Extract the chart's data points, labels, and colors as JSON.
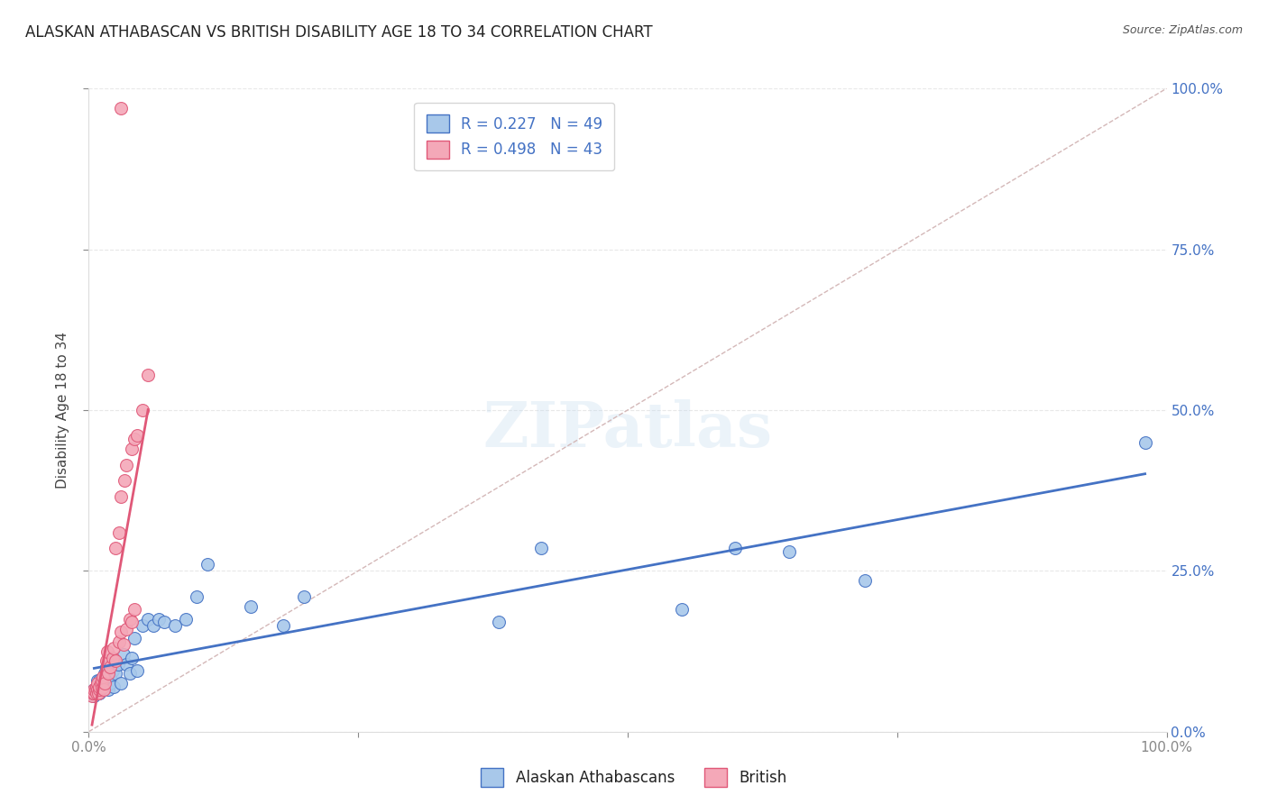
{
  "title": "ALASKAN ATHABASCAN VS BRITISH DISABILITY AGE 18 TO 34 CORRELATION CHART",
  "source": "Source: ZipAtlas.com",
  "ylabel": "Disability Age 18 to 34",
  "legend_label_alaskan": "Alaskan Athabascans",
  "legend_label_british": "British",
  "color_alaskan": "#a8c8ea",
  "color_british": "#f4a8b8",
  "color_line_alaskan": "#4472c4",
  "color_line_british": "#e05878",
  "color_diagonal": "#d4b8b8",
  "background_color": "#ffffff",
  "grid_color": "#e8e8e8",
  "r_alaskan": 0.227,
  "n_alaskan": 49,
  "r_british": 0.498,
  "n_british": 43,
  "xlim": [
    0.0,
    1.0
  ],
  "ylim": [
    0.0,
    1.0
  ],
  "yticks": [
    0.0,
    0.25,
    0.5,
    0.75,
    1.0
  ],
  "ytick_labels_right": [
    "0.0%",
    "25.0%",
    "50.0%",
    "75.0%",
    "100.0%"
  ],
  "xticks": [
    0.0,
    0.25,
    0.5,
    0.75,
    1.0
  ],
  "xtick_labels": [
    "0.0%",
    "",
    "",
    "",
    "100.0%"
  ],
  "alaskan_x": [
    0.005,
    0.005,
    0.007,
    0.008,
    0.008,
    0.009,
    0.01,
    0.01,
    0.01,
    0.012,
    0.012,
    0.013,
    0.015,
    0.015,
    0.016,
    0.017,
    0.018,
    0.02,
    0.02,
    0.022,
    0.023,
    0.025,
    0.027,
    0.03,
    0.032,
    0.035,
    0.038,
    0.04,
    0.042,
    0.045,
    0.05,
    0.055,
    0.06,
    0.065,
    0.07,
    0.08,
    0.09,
    0.1,
    0.11,
    0.15,
    0.18,
    0.2,
    0.38,
    0.42,
    0.55,
    0.6,
    0.65,
    0.72,
    0.98
  ],
  "alaskan_y": [
    0.055,
    0.065,
    0.07,
    0.075,
    0.08,
    0.065,
    0.06,
    0.07,
    0.08,
    0.068,
    0.075,
    0.08,
    0.09,
    0.07,
    0.1,
    0.085,
    0.065,
    0.075,
    0.085,
    0.095,
    0.07,
    0.09,
    0.105,
    0.075,
    0.12,
    0.105,
    0.09,
    0.115,
    0.145,
    0.095,
    0.165,
    0.175,
    0.165,
    0.175,
    0.17,
    0.165,
    0.175,
    0.21,
    0.26,
    0.195,
    0.165,
    0.21,
    0.17,
    0.285,
    0.19,
    0.285,
    0.28,
    0.235,
    0.45
  ],
  "british_x": [
    0.003,
    0.004,
    0.005,
    0.005,
    0.006,
    0.007,
    0.007,
    0.008,
    0.008,
    0.009,
    0.01,
    0.01,
    0.011,
    0.012,
    0.012,
    0.013,
    0.014,
    0.015,
    0.016,
    0.017,
    0.018,
    0.02,
    0.022,
    0.023,
    0.025,
    0.028,
    0.03,
    0.032,
    0.035,
    0.038,
    0.04,
    0.042,
    0.025,
    0.028,
    0.03,
    0.033,
    0.035,
    0.04,
    0.042,
    0.045,
    0.05,
    0.055,
    0.03
  ],
  "british_y": [
    0.055,
    0.06,
    0.06,
    0.065,
    0.065,
    0.06,
    0.07,
    0.065,
    0.075,
    0.06,
    0.065,
    0.07,
    0.075,
    0.068,
    0.08,
    0.085,
    0.065,
    0.075,
    0.11,
    0.125,
    0.09,
    0.1,
    0.115,
    0.13,
    0.11,
    0.14,
    0.155,
    0.135,
    0.16,
    0.175,
    0.17,
    0.19,
    0.285,
    0.31,
    0.365,
    0.39,
    0.415,
    0.44,
    0.455,
    0.46,
    0.5,
    0.555,
    0.97
  ]
}
